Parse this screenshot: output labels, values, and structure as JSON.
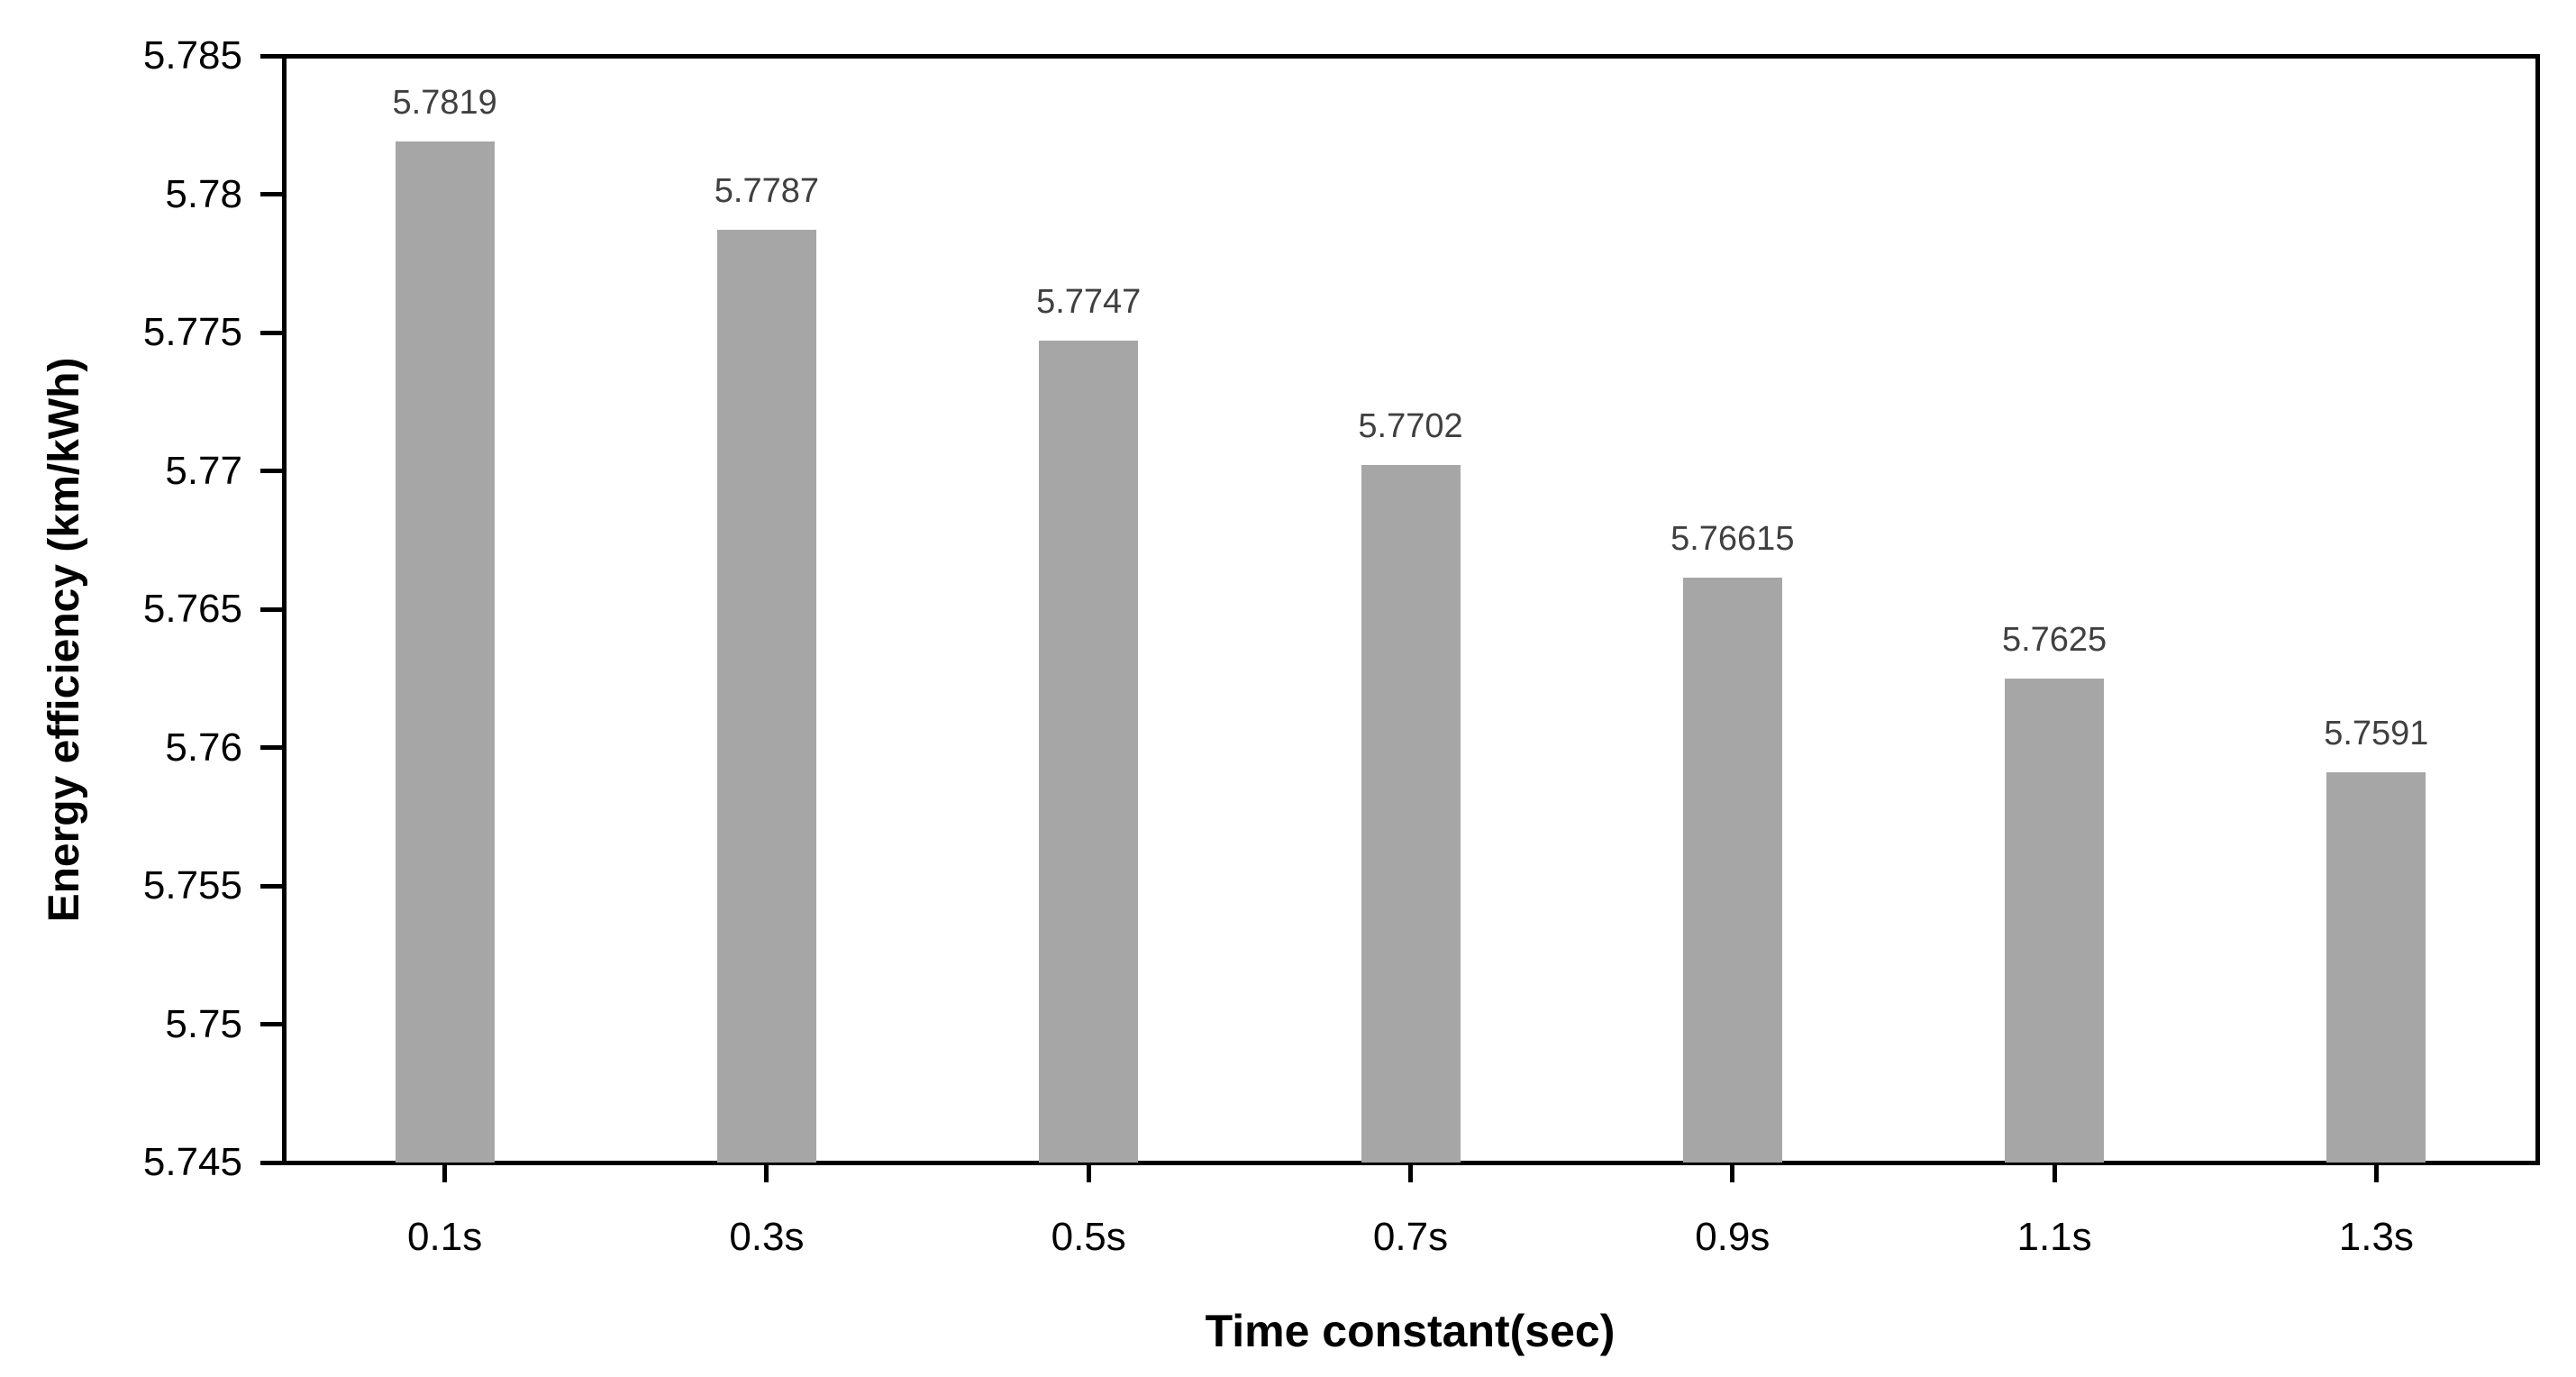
{
  "chart_data": {
    "type": "bar",
    "title": "",
    "xlabel": "Time constant(sec)",
    "ylabel": "Energy efficiency (km/kWh)",
    "categories": [
      "0.1s",
      "0.3s",
      "0.5s",
      "0.7s",
      "0.9s",
      "1.1s",
      "1.3s"
    ],
    "values": [
      5.7819,
      5.7787,
      5.7747,
      5.7702,
      5.76615,
      5.7625,
      5.7591
    ],
    "data_labels": [
      "5.7819",
      "5.7787",
      "5.7747",
      "5.7702",
      "5.76615",
      "5.7625",
      "5.7591"
    ],
    "ylim": [
      5.745,
      5.785
    ],
    "ytick_step": 0.005,
    "ytick_labels_bottom_to_top": [
      "5.745",
      "5.75",
      "5.755",
      "5.76",
      "5.765",
      "5.77",
      "5.775",
      "5.78",
      "5.785"
    ],
    "grid": false,
    "legend": false,
    "bar_color": "#a6a6a6",
    "axis_color": "#000000",
    "tick_label_color": "#000000",
    "data_label_color": "#404040",
    "background_color": "#ffffff"
  }
}
